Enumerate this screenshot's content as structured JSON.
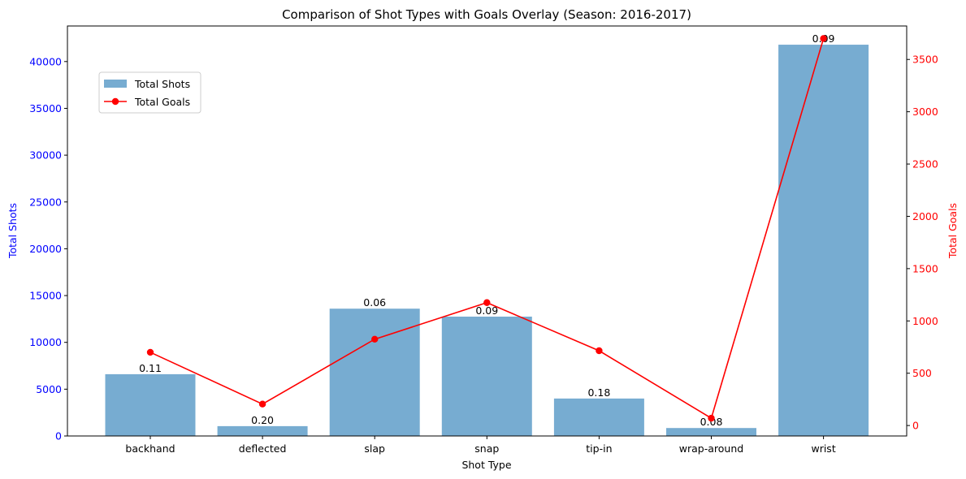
{
  "chart_data": {
    "type": "bar",
    "title": "Comparison of Shot Types with Goals Overlay (Season: 2016-2017)",
    "xlabel": "Shot Type",
    "ylabel": "Total Shots",
    "y2label": "Total Goals",
    "categories": [
      "backhand",
      "deflected",
      "slap",
      "snap",
      "tip-in",
      "wrap-around",
      "wrist"
    ],
    "series": [
      {
        "name": "Total Shots",
        "type": "bar",
        "axis": "left",
        "color": "#77acd1",
        "values": [
          6600,
          1050,
          13600,
          12750,
          4000,
          850,
          41800
        ],
        "labels": [
          "0.11",
          "0.20",
          "0.06",
          "0.09",
          "0.18",
          "0.08",
          "0.09"
        ]
      },
      {
        "name": "Total Goals",
        "type": "line",
        "axis": "right",
        "color": "#ff0000",
        "values": [
          700,
          205,
          825,
          1175,
          715,
          70,
          3700
        ]
      }
    ],
    "ylim": [
      0,
      43800
    ],
    "y2lim": [
      -100,
      3820
    ],
    "yticks": [
      0,
      5000,
      10000,
      15000,
      20000,
      25000,
      30000,
      35000,
      40000
    ],
    "ytick_labels": [
      "0",
      "5000",
      "10000",
      "15000",
      "20000",
      "25000",
      "30000",
      "35000",
      "40000"
    ],
    "y2ticks": [
      0,
      500,
      1000,
      1500,
      2000,
      2500,
      3000,
      3500
    ],
    "y2tick_labels": [
      "0",
      "500",
      "1000",
      "1500",
      "2000",
      "2500",
      "3000",
      "3500"
    ],
    "left_axis_color": "#0000ff",
    "right_axis_color": "#ff0000",
    "legend_position": "upper-left",
    "grid": false
  }
}
